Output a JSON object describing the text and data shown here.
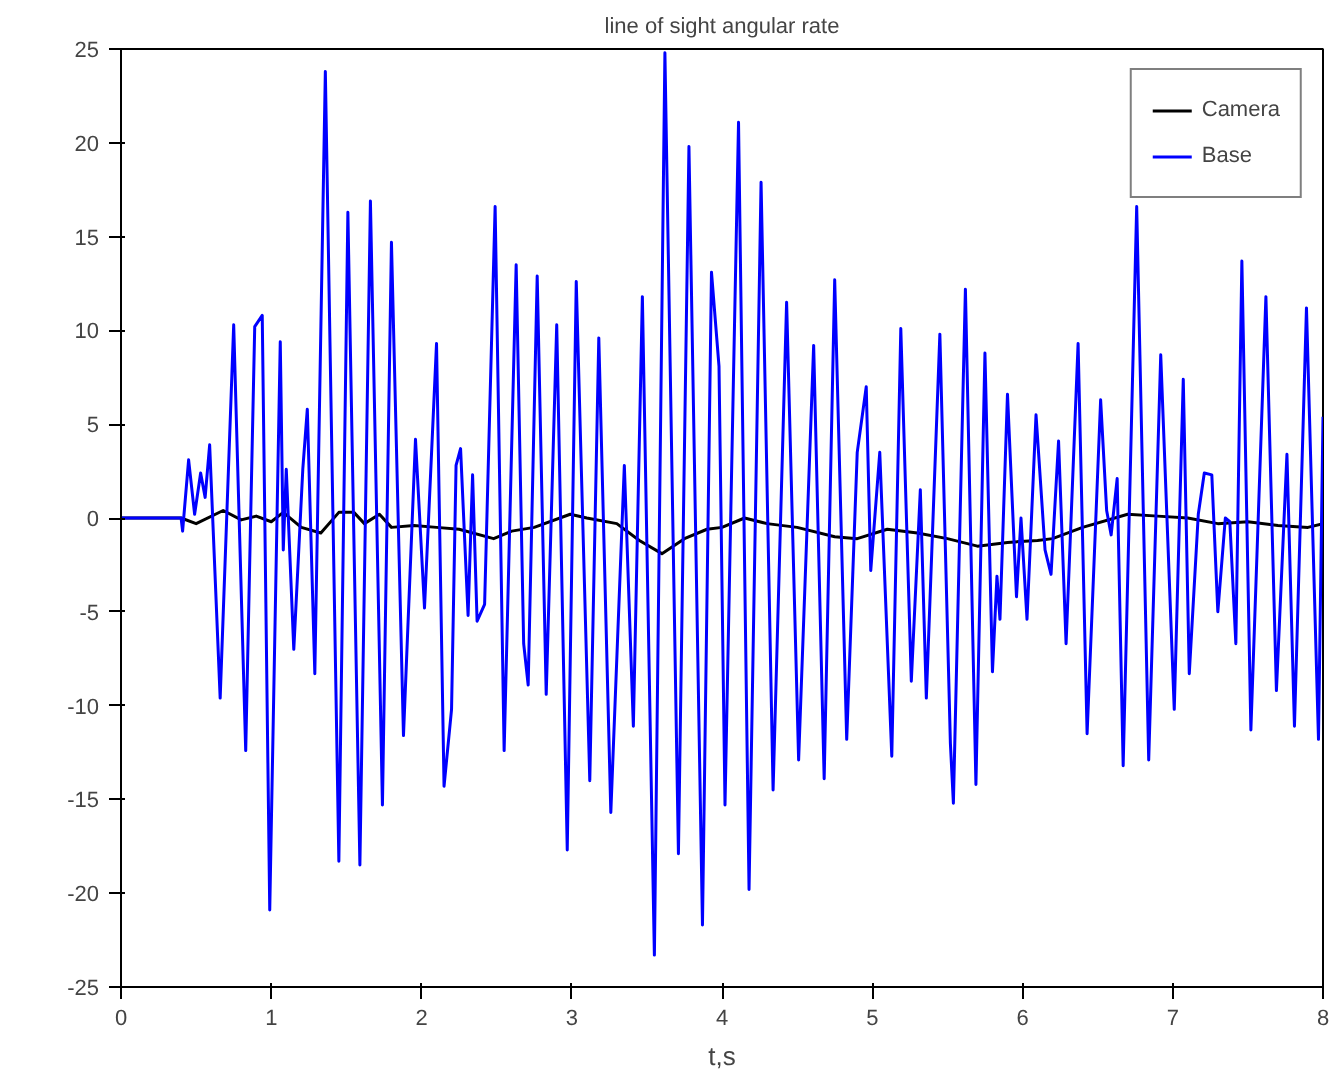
{
  "chart_data": {
    "type": "line",
    "title": "line of sight angular rate",
    "xlabel": "t,s",
    "xlim": [
      0,
      8
    ],
    "xticks": [
      0,
      1,
      2,
      3,
      4,
      5,
      6,
      7,
      8
    ],
    "ylim": [
      -25,
      25
    ],
    "yticks": [
      -25,
      -20,
      -15,
      -10,
      -5,
      0,
      5,
      10,
      15,
      20,
      25
    ],
    "grid": false,
    "legend": "top right",
    "marker": "none",
    "line_style": "solid",
    "series": [
      {
        "name": "Camera",
        "color": "#000000",
        "x": [
          0,
          0.4,
          0.5,
          0.68,
          0.8,
          0.9,
          1.0,
          1.08,
          1.2,
          1.33,
          1.45,
          1.55,
          1.62,
          1.72,
          1.8,
          1.95,
          2.1,
          2.25,
          2.48,
          2.6,
          2.75,
          2.99,
          3.1,
          3.3,
          3.45,
          3.6,
          3.75,
          3.9,
          4.0,
          4.15,
          4.3,
          4.5,
          4.75,
          4.9,
          5.1,
          5.3,
          5.5,
          5.7,
          5.9,
          6.1,
          6.2,
          6.4,
          6.7,
          6.9,
          7.1,
          7.3,
          7.5,
          7.7,
          7.9,
          8.0
        ],
        "values": [
          0,
          0,
          -0.3,
          0.4,
          -0.1,
          0.1,
          -0.2,
          0.3,
          -0.5,
          -0.8,
          0.3,
          0.3,
          -0.3,
          0.2,
          -0.5,
          -0.4,
          -0.5,
          -0.6,
          -1.1,
          -0.7,
          -0.5,
          0.2,
          0,
          -0.3,
          -1.2,
          -1.9,
          -1.1,
          -0.6,
          -0.5,
          0,
          -0.3,
          -0.5,
          -1.0,
          -1.1,
          -0.6,
          -0.8,
          -1.1,
          -1.5,
          -1.3,
          -1.2,
          -1.1,
          -0.5,
          0.2,
          0.1,
          0,
          -0.3,
          -0.2,
          -0.4,
          -0.5,
          -0.3
        ]
      },
      {
        "name": "Base",
        "color": "#0000ff",
        "x": [
          0,
          0.4,
          0.41,
          0.45,
          0.49,
          0.53,
          0.56,
          0.59,
          0.66,
          0.75,
          0.83,
          0.89,
          0.94,
          0.99,
          1.06,
          1.08,
          1.1,
          1.15,
          1.21,
          1.24,
          1.29,
          1.36,
          1.45,
          1.51,
          1.59,
          1.66,
          1.74,
          1.8,
          1.88,
          1.96,
          2.02,
          2.1,
          2.15,
          2.2,
          2.23,
          2.26,
          2.31,
          2.34,
          2.37,
          2.42,
          2.49,
          2.55,
          2.63,
          2.68,
          2.71,
          2.77,
          2.83,
          2.9,
          2.97,
          3.03,
          3.12,
          3.18,
          3.26,
          3.35,
          3.41,
          3.47,
          3.55,
          3.62,
          3.71,
          3.78,
          3.87,
          3.93,
          3.98,
          4.02,
          4.11,
          4.18,
          4.26,
          4.34,
          4.43,
          4.51,
          4.61,
          4.68,
          4.75,
          4.83,
          4.9,
          4.96,
          4.99,
          5.05,
          5.13,
          5.19,
          5.26,
          5.32,
          5.36,
          5.45,
          5.52,
          5.54,
          5.62,
          5.69,
          5.75,
          5.8,
          5.83,
          5.85,
          5.9,
          5.96,
          5.99,
          6.03,
          6.09,
          6.15,
          6.19,
          6.24,
          6.29,
          6.37,
          6.43,
          6.52,
          6.56,
          6.59,
          6.63,
          6.67,
          6.76,
          6.84,
          6.92,
          7.01,
          7.07,
          7.11,
          7.17,
          7.21,
          7.26,
          7.3,
          7.35,
          7.38,
          7.42,
          7.46,
          7.52,
          7.62,
          7.69,
          7.76,
          7.81,
          7.89,
          7.97,
          8.0
        ],
        "values": [
          0,
          0,
          -0.7,
          3.1,
          0.2,
          2.4,
          1.1,
          3.9,
          -9.6,
          10.3,
          -12.4,
          10.2,
          10.8,
          -20.9,
          9.4,
          -1.7,
          2.6,
          -7.0,
          2.6,
          5.8,
          -8.3,
          23.8,
          -18.3,
          16.3,
          -18.5,
          16.9,
          -15.3,
          14.7,
          -11.6,
          4.2,
          -4.8,
          9.3,
          -14.3,
          -10.2,
          2.8,
          3.7,
          -5.2,
          2.3,
          -5.5,
          -4.6,
          16.6,
          -12.4,
          13.5,
          -6.7,
          -8.9,
          12.9,
          -9.4,
          10.3,
          -17.7,
          12.6,
          -14.0,
          9.6,
          -15.7,
          2.8,
          -11.1,
          11.8,
          -23.3,
          24.8,
          -17.9,
          19.8,
          -21.7,
          13.1,
          8.1,
          -15.3,
          21.1,
          -19.8,
          17.9,
          -14.5,
          11.5,
          -12.9,
          9.2,
          -13.9,
          12.7,
          -11.8,
          3.5,
          7.0,
          -2.8,
          3.5,
          -12.7,
          10.1,
          -8.7,
          1.5,
          -9.6,
          9.8,
          -12.0,
          -15.2,
          12.2,
          -14.2,
          8.8,
          -8.2,
          -3.1,
          -5.4,
          6.6,
          -4.2,
          0,
          -5.4,
          5.5,
          -1.7,
          -3.0,
          4.1,
          -6.7,
          9.3,
          -11.5,
          6.3,
          0.4,
          -0.9,
          2.1,
          -13.2,
          16.6,
          -12.9,
          8.7,
          -10.2,
          7.4,
          -8.3,
          0.2,
          2.4,
          2.3,
          -5.0,
          0,
          -0.2,
          -6.7,
          13.7,
          -11.3,
          11.8,
          -9.2,
          3.4,
          -11.1,
          11.2,
          -11.8,
          5.4
        ]
      }
    ]
  }
}
